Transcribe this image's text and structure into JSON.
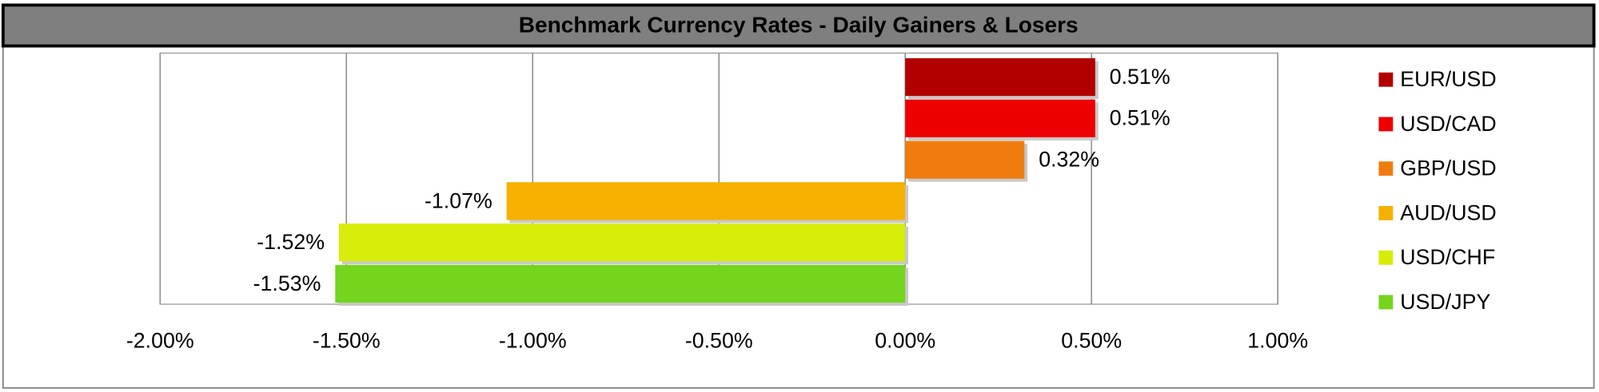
{
  "chart_data": {
    "type": "hbar",
    "title": "Benchmark Currency Rates - Daily Gainers & Losers",
    "categories": [
      "EUR/USD",
      "USD/CAD",
      "GBP/USD",
      "AUD/USD",
      "USD/CHF",
      "USD/JPY"
    ],
    "values": [
      0.51,
      0.51,
      0.32,
      -1.07,
      -1.52,
      -1.53
    ],
    "value_labels": [
      "0.51%",
      "0.51%",
      "0.32%",
      "-1.07%",
      "-1.52%",
      "-1.53%"
    ],
    "colors": [
      "#b20000",
      "#ee0000",
      "#f07c10",
      "#f5b000",
      "#d8ec0a",
      "#74d41e"
    ],
    "xlim": [
      -2,
      1
    ],
    "xticks": [
      {
        "value": -2,
        "label": "-2.00%"
      },
      {
        "value": -1.5,
        "label": "-1.50%"
      },
      {
        "value": -1,
        "label": "-1.00%"
      },
      {
        "value": -0.5,
        "label": "-0.50%"
      },
      {
        "value": 0,
        "label": "0.00%"
      },
      {
        "value": 0.5,
        "label": "0.50%"
      },
      {
        "value": 1,
        "label": "1.00%"
      }
    ],
    "grid": true,
    "legend": "right"
  }
}
